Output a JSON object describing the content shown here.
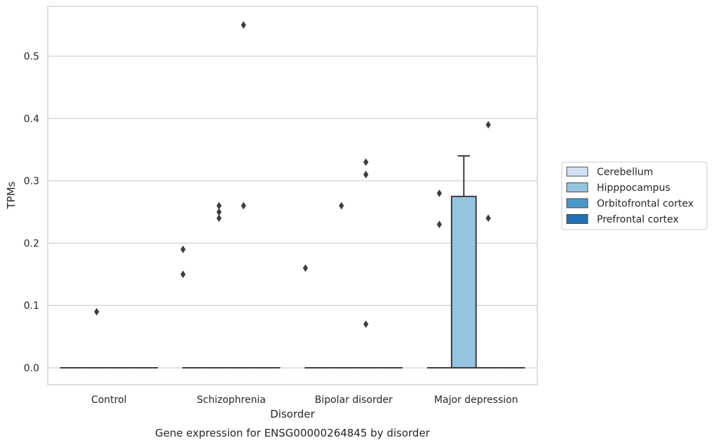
{
  "chart_data": {
    "type": "box",
    "title": "",
    "caption": "Gene expression for ENSG00000264845 by disorder",
    "xlabel": "Disorder",
    "ylabel": "TPMs",
    "ylim": [
      -0.027,
      0.58
    ],
    "yticks": [
      0.0,
      0.1,
      0.2,
      0.3,
      0.4,
      0.5
    ],
    "ytick_labels": [
      "0.0",
      "0.1",
      "0.2",
      "0.3",
      "0.4",
      "0.5"
    ],
    "grid": "horizontal",
    "legend_position": "right",
    "categories": [
      "Control",
      "Schizophrenia",
      "Bipolar disorder",
      "Major depression"
    ],
    "series": [
      {
        "name": "Cerebellum",
        "color": "#d0e1f2",
        "boxes": [
          {
            "q1": 0,
            "median": 0,
            "q3": 0,
            "whisker_low": 0,
            "whisker_high": 0,
            "outliers": []
          },
          {
            "q1": 0,
            "median": 0,
            "q3": 0,
            "whisker_low": 0,
            "whisker_high": 0,
            "outliers": []
          },
          {
            "q1": 0,
            "median": 0,
            "q3": 0,
            "whisker_low": 0,
            "whisker_high": 0,
            "outliers": []
          },
          {
            "q1": 0,
            "median": 0,
            "q3": 0,
            "whisker_low": 0,
            "whisker_high": 0,
            "outliers": [
              0.28,
              0.23
            ]
          }
        ]
      },
      {
        "name": "Hipppocampus",
        "color": "#94c4df",
        "boxes": [
          {
            "q1": 0,
            "median": 0,
            "q3": 0,
            "whisker_low": 0,
            "whisker_high": 0,
            "outliers": [
              0.09
            ]
          },
          {
            "q1": 0,
            "median": 0,
            "q3": 0,
            "whisker_low": 0,
            "whisker_high": 0,
            "outliers": [
              0.26,
              0.25,
              0.24
            ]
          },
          {
            "q1": 0,
            "median": 0,
            "q3": 0,
            "whisker_low": 0,
            "whisker_high": 0,
            "outliers": [
              0.26
            ]
          },
          {
            "q1": 0,
            "median": 0,
            "q3": 0.275,
            "whisker_low": 0,
            "whisker_high": 0.34,
            "outliers": []
          }
        ]
      },
      {
        "name": "Orbitofrontal cortex",
        "color": "#4a98c9",
        "boxes": [
          {
            "q1": 0,
            "median": 0,
            "q3": 0,
            "whisker_low": 0,
            "whisker_high": 0,
            "outliers": []
          },
          {
            "q1": 0,
            "median": 0,
            "q3": 0,
            "whisker_low": 0,
            "whisker_high": 0,
            "outliers": [
              0.55,
              0.26
            ]
          },
          {
            "q1": 0,
            "median": 0,
            "q3": 0,
            "whisker_low": 0,
            "whisker_high": 0,
            "outliers": [
              0.33,
              0.31,
              0.07
            ]
          },
          {
            "q1": 0,
            "median": 0,
            "q3": 0,
            "whisker_low": 0,
            "whisker_high": 0,
            "outliers": [
              0.39,
              0.24
            ]
          }
        ]
      },
      {
        "name": "Prefrontal cortex",
        "color": "#2171b5",
        "boxes": [
          {
            "q1": 0,
            "median": 0,
            "q3": 0,
            "whisker_low": 0,
            "whisker_high": 0,
            "outliers": []
          },
          {
            "q1": 0,
            "median": 0,
            "q3": 0,
            "whisker_low": 0,
            "whisker_high": 0,
            "outliers": []
          },
          {
            "q1": 0,
            "median": 0,
            "q3": 0,
            "whisker_low": 0,
            "whisker_high": 0,
            "outliers": []
          },
          {
            "q1": 0,
            "median": 0,
            "q3": 0,
            "whisker_low": 0,
            "whisker_high": 0,
            "outliers": []
          }
        ]
      }
    ]
  },
  "extra_outliers": [
    {
      "category": 1,
      "value": 0.19,
      "offset": -1
    },
    {
      "category": 1,
      "value": 0.15,
      "offset": -1
    },
    {
      "category": 2,
      "value": 0.16,
      "offset": -1
    }
  ]
}
